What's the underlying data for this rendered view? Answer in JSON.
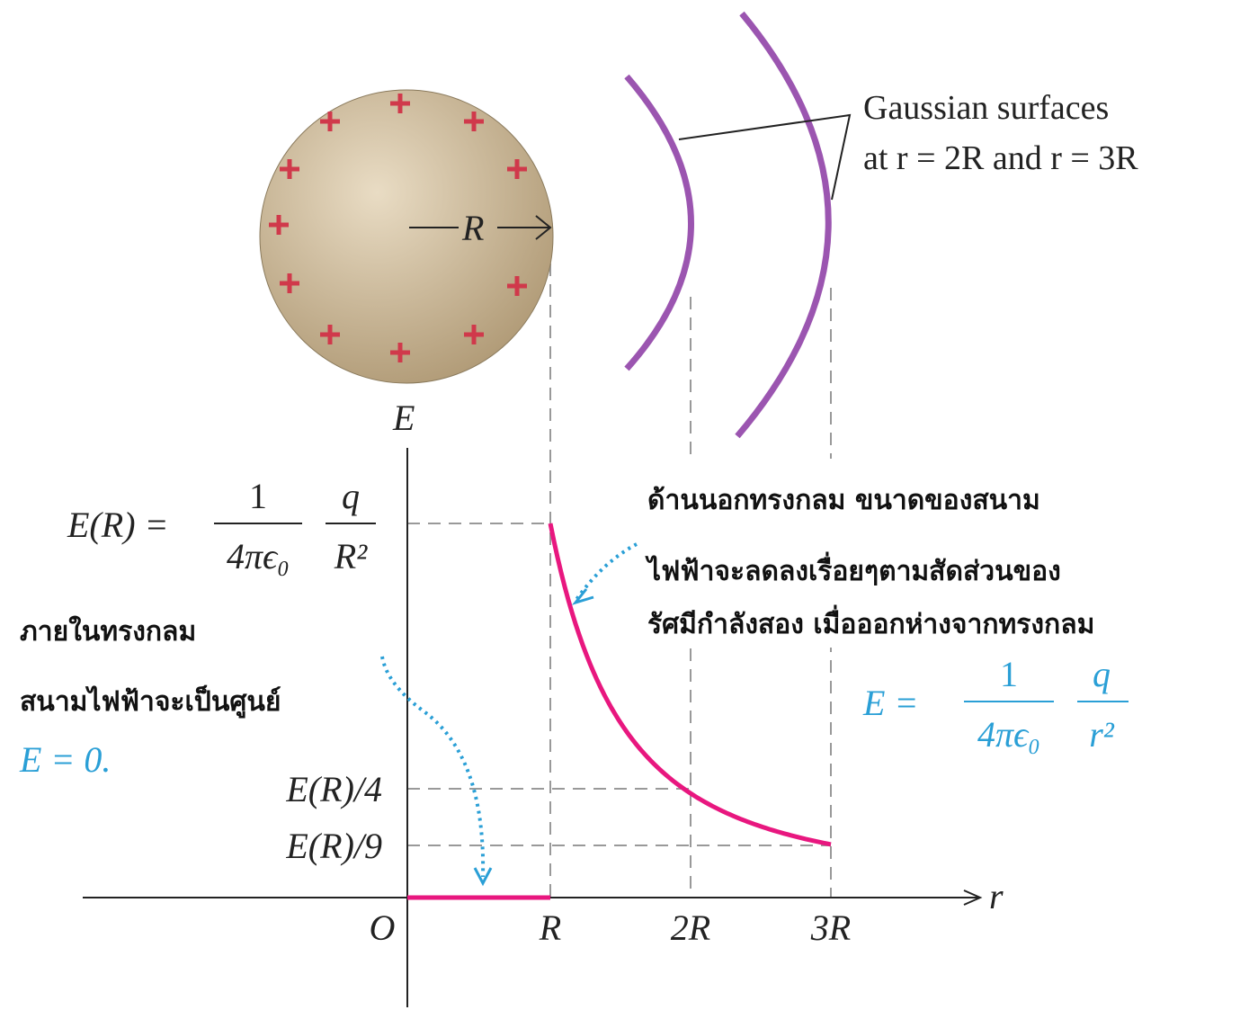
{
  "sphere": {
    "radius_label": "R"
  },
  "gaussian_label": {
    "line1": "Gaussian surfaces",
    "line2": "at r = 2R and r = 3R"
  },
  "axes": {
    "y_label": "E",
    "x_label": "r",
    "origin": "O",
    "x_ticks": [
      "R",
      "2R",
      "3R"
    ],
    "y_ticks": [
      "E(R)/4",
      "E(R)/9"
    ]
  },
  "er_formula": {
    "lhs": "E(R) =",
    "num1": "1",
    "den1": "4πϵ₀",
    "num2": "q",
    "den2": "R²"
  },
  "outside_note": {
    "lines": [
      "ด้านนอกทรงกลม ขนาดของสนาม",
      "ไฟฟ้าจะลดลงเรื่อยๆตามสัดส่วนของ",
      "รัศมีกำลังสอง เมื่อออกห่างจากทรงกลม"
    ]
  },
  "inside_note": {
    "lines": [
      "ภายในทรงกลม",
      "สนามไฟฟ้าจะเป็นศูนย์"
    ],
    "formula": "E = 0."
  },
  "outside_formula": {
    "lhs": "E =",
    "num1": "1",
    "den1": "4πϵ₀",
    "num2": "q",
    "den2": "r²"
  }
}
